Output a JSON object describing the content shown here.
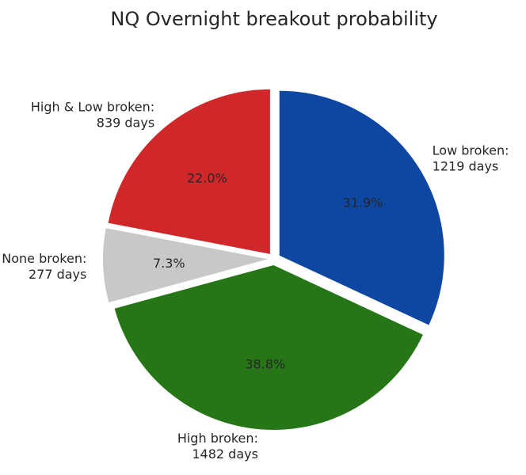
{
  "chart_data": {
    "type": "pie",
    "title": "NQ Overnight breakout probability",
    "slices": [
      {
        "label_line1": "High & Low broken:",
        "label_line2": "839 days",
        "value": 839,
        "pct_label": "22.0%",
        "color": "#d0282a"
      },
      {
        "label_line1": "None broken:",
        "label_line2": "277 days",
        "value": 277,
        "pct_label": "7.3%",
        "color": "#c8c8c8"
      },
      {
        "label_line1": "High broken:",
        "label_line2": "1482 days",
        "value": 1482,
        "pct_label": "38.8%",
        "color": "#267617"
      },
      {
        "label_line1": "Low broken:",
        "label_line2": "1219 days",
        "value": 1219,
        "pct_label": "31.9%",
        "color": "#0d47a1"
      }
    ],
    "start_angle_deg": 90,
    "direction": "counterclockwise",
    "exploded": true,
    "legend": "none",
    "background": "#ffffff"
  }
}
